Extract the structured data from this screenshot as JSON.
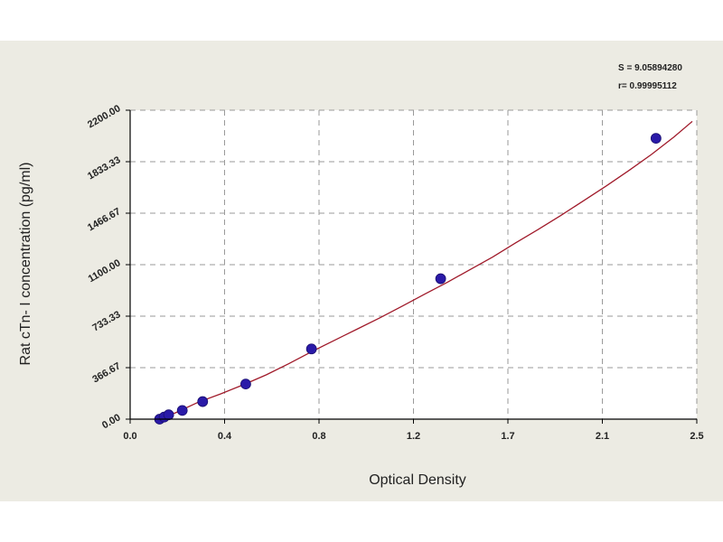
{
  "chart_data": {
    "type": "scatter",
    "xlabel": "Optical Density",
    "ylabel": "Rat cTn- I concentration (pg/ml)",
    "xlim": [
      0.0,
      2.5
    ],
    "ylim": [
      0.0,
      2200.0
    ],
    "x_ticks": [
      "0.0",
      "0.4",
      "0.8",
      "1.2",
      "1.7",
      "2.1",
      "2.5"
    ],
    "y_ticks": [
      "0.00",
      "366.67",
      "733.33",
      "1100.00",
      "1466.67",
      "1833.33",
      "2200.00"
    ],
    "grid": true,
    "points": [
      {
        "x": 0.13,
        "y": 0
      },
      {
        "x": 0.15,
        "y": 15
      },
      {
        "x": 0.17,
        "y": 31
      },
      {
        "x": 0.23,
        "y": 62
      },
      {
        "x": 0.32,
        "y": 125
      },
      {
        "x": 0.51,
        "y": 250
      },
      {
        "x": 0.8,
        "y": 500
      },
      {
        "x": 1.37,
        "y": 1000
      },
      {
        "x": 2.32,
        "y": 2000
      }
    ],
    "fit_curve": {
      "x": [
        0.11,
        0.2,
        0.3,
        0.4,
        0.5,
        0.6,
        0.7,
        0.8,
        0.9,
        1.0,
        1.1,
        1.2,
        1.3,
        1.4,
        1.5,
        1.6,
        1.7,
        1.8,
        1.9,
        2.0,
        2.1,
        2.2,
        2.3,
        2.4,
        2.48
      ],
      "y": [
        0,
        45,
        120,
        180,
        245,
        315,
        395,
        480,
        560,
        640,
        720,
        805,
        890,
        975,
        1065,
        1155,
        1255,
        1350,
        1450,
        1555,
        1660,
        1770,
        1885,
        2010,
        2120
      ]
    },
    "stats": [
      "S = 9.05894280",
      "r= 0.99995112"
    ]
  },
  "colors": {
    "curve": "#a01a2a",
    "point": "#2a1aa8",
    "grid": "#9a9a9a",
    "axis": "#000000"
  }
}
